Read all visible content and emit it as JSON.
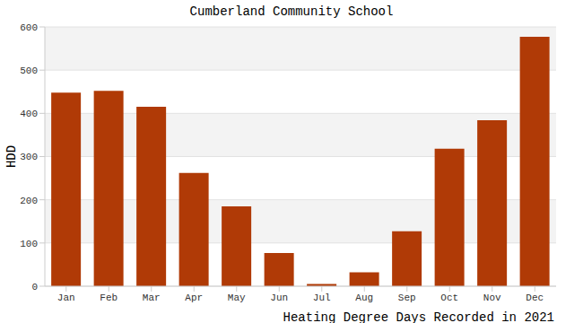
{
  "chart_data": {
    "type": "bar",
    "title": "Cumberland Community School",
    "x_label": "Heating Degree Days Recorded in 2021",
    "y_label": "HDD",
    "categories": [
      "Jan",
      "Feb",
      "Mar",
      "Apr",
      "May",
      "Jun",
      "Jul",
      "Aug",
      "Sep",
      "Oct",
      "Nov",
      "Dec"
    ],
    "values": [
      448,
      452,
      415,
      262,
      185,
      77,
      5,
      32,
      127,
      318,
      384,
      577
    ],
    "color": "#b03a06",
    "ylim": [
      0,
      600
    ],
    "yticks": [
      0,
      100,
      200,
      300,
      400,
      500,
      600
    ],
    "grid": true
  }
}
